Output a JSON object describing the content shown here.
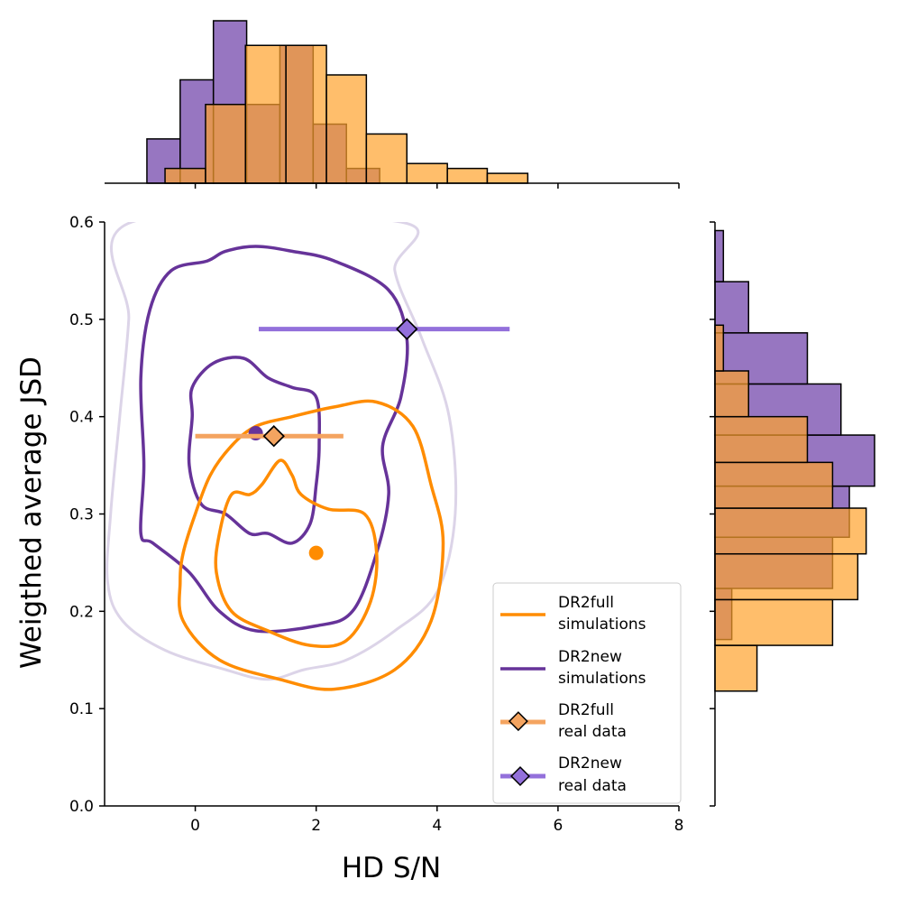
{
  "chart_data": {
    "type": "scatter",
    "xlabel": "HD S/N",
    "ylabel": "Weigthed average JSD",
    "xlim": [
      -1.5,
      8
    ],
    "ylim": [
      0,
      0.6
    ],
    "xticks": [
      0,
      2,
      4,
      6,
      8
    ],
    "yticks": [
      0.0,
      0.1,
      0.2,
      0.3,
      0.4,
      0.5,
      0.6
    ],
    "xtick_labels": [
      "0",
      "2",
      "4",
      "6",
      "8"
    ],
    "ytick_labels": [
      "0.0",
      "0.1",
      "0.2",
      "0.3",
      "0.4",
      "0.5",
      "0.6"
    ],
    "colors": {
      "full_line": "#ff8c00",
      "full_fill": "#ffa32c",
      "full_real": "#f4a460",
      "new_line": "#663399",
      "new_fill": "#7d54b2",
      "new_real": "#9370db",
      "outer_contour": "#dcd4e8"
    },
    "real_data": [
      {
        "name": "DR2full",
        "x": 1.3,
        "y": 0.38,
        "xerr": [
          0.0,
          2.45
        ]
      },
      {
        "name": "DR2new",
        "x": 3.5,
        "y": 0.49,
        "xerr": [
          1.05,
          5.2
        ]
      }
    ],
    "simulation_centers": [
      {
        "name": "DR2full",
        "x": 2.0,
        "y": 0.26
      },
      {
        "name": "DR2new",
        "x": 1.0,
        "y": 0.383
      }
    ],
    "contours": [
      {
        "series": "DR2new",
        "level": "outer-faint",
        "points": [
          [
            -1.05,
            0.6
          ],
          [
            -1.1,
            0.5
          ],
          [
            -1.25,
            0.4
          ],
          [
            -1.4,
            0.3
          ],
          [
            -1.45,
            0.23
          ],
          [
            -1.2,
            0.19
          ],
          [
            -0.5,
            0.16
          ],
          [
            0.5,
            0.14
          ],
          [
            1.2,
            0.13
          ],
          [
            1.8,
            0.14
          ],
          [
            2.5,
            0.15
          ],
          [
            3.3,
            0.18
          ],
          [
            4.0,
            0.22
          ],
          [
            4.3,
            0.3
          ],
          [
            4.2,
            0.4
          ],
          [
            3.75,
            0.48
          ],
          [
            3.3,
            0.55
          ],
          [
            3.4,
            0.6
          ]
        ]
      },
      {
        "series": "DR2new",
        "level": "mid",
        "points": [
          [
            -0.9,
            0.28
          ],
          [
            -0.85,
            0.35
          ],
          [
            -0.9,
            0.44
          ],
          [
            -0.75,
            0.51
          ],
          [
            -0.4,
            0.55
          ],
          [
            0.2,
            0.56
          ],
          [
            0.5,
            0.57
          ],
          [
            1.0,
            0.575
          ],
          [
            1.6,
            0.57
          ],
          [
            2.3,
            0.56
          ],
          [
            3.2,
            0.53
          ],
          [
            3.5,
            0.48
          ],
          [
            3.4,
            0.42
          ],
          [
            3.1,
            0.37
          ],
          [
            3.2,
            0.32
          ],
          [
            3.0,
            0.26
          ],
          [
            2.6,
            0.2
          ],
          [
            2.0,
            0.185
          ],
          [
            1.0,
            0.18
          ],
          [
            0.4,
            0.2
          ],
          [
            -0.1,
            0.24
          ],
          [
            -0.7,
            0.27
          ]
        ]
      },
      {
        "series": "DR2new",
        "level": "inner",
        "points": [
          [
            -0.05,
            0.43
          ],
          [
            0.3,
            0.455
          ],
          [
            0.8,
            0.46
          ],
          [
            1.2,
            0.44
          ],
          [
            1.6,
            0.43
          ],
          [
            2.0,
            0.42
          ],
          [
            2.05,
            0.37
          ],
          [
            2.0,
            0.33
          ],
          [
            1.9,
            0.29
          ],
          [
            1.6,
            0.27
          ],
          [
            1.2,
            0.28
          ],
          [
            0.9,
            0.28
          ],
          [
            0.5,
            0.3
          ],
          [
            0.1,
            0.31
          ],
          [
            -0.1,
            0.35
          ],
          [
            -0.05,
            0.4
          ]
        ]
      },
      {
        "series": "DR2full",
        "level": "outer",
        "points": [
          [
            -0.2,
            0.26
          ],
          [
            0.0,
            0.3
          ],
          [
            0.25,
            0.34
          ],
          [
            0.6,
            0.37
          ],
          [
            1.0,
            0.39
          ],
          [
            1.6,
            0.4
          ],
          [
            2.3,
            0.41
          ],
          [
            3.0,
            0.415
          ],
          [
            3.6,
            0.39
          ],
          [
            3.9,
            0.33
          ],
          [
            4.1,
            0.27
          ],
          [
            3.9,
            0.19
          ],
          [
            3.3,
            0.14
          ],
          [
            2.3,
            0.12
          ],
          [
            1.4,
            0.13
          ],
          [
            0.4,
            0.15
          ],
          [
            -0.2,
            0.19
          ],
          [
            -0.25,
            0.23
          ]
        ]
      },
      {
        "series": "DR2full",
        "level": "inner",
        "points": [
          [
            0.4,
            0.28
          ],
          [
            0.6,
            0.32
          ],
          [
            0.9,
            0.32
          ],
          [
            1.1,
            0.33
          ],
          [
            1.4,
            0.355
          ],
          [
            1.6,
            0.34
          ],
          [
            1.75,
            0.32
          ],
          [
            2.2,
            0.305
          ],
          [
            2.8,
            0.3
          ],
          [
            3.0,
            0.26
          ],
          [
            2.9,
            0.21
          ],
          [
            2.5,
            0.17
          ],
          [
            1.9,
            0.165
          ],
          [
            1.2,
            0.18
          ],
          [
            0.6,
            0.2
          ],
          [
            0.35,
            0.24
          ]
        ]
      }
    ],
    "top_hist": {
      "xlabel_axis": "HD S/N",
      "series": [
        {
          "name": "DR2new",
          "bin_edges": [
            -0.8,
            -0.25,
            0.3,
            0.85,
            1.4,
            1.95,
            2.5,
            3.05
          ],
          "counts": [
            9,
            21,
            33,
            16,
            28,
            12,
            3
          ]
        },
        {
          "name": "DR2full",
          "bin_edges": [
            -0.5,
            0.17,
            0.83,
            1.5,
            2.17,
            2.83,
            3.5,
            4.17,
            4.83,
            5.5
          ],
          "counts": [
            3,
            16,
            28,
            28,
            22,
            10,
            4,
            3,
            2
          ]
        }
      ]
    },
    "right_hist": {
      "series": [
        {
          "name": "DR2new",
          "bin_edges": [
            0.171,
            0.2235,
            0.2761,
            0.3286,
            0.3811,
            0.4336,
            0.4861,
            0.5387,
            0.5912
          ],
          "counts": [
            2,
            14,
            16,
            19,
            15,
            11,
            4,
            1
          ]
        },
        {
          "name": "DR2full",
          "bin_edges": [
            0.118,
            0.165,
            0.212,
            0.259,
            0.306,
            0.353,
            0.4,
            0.447,
            0.494
          ],
          "counts": [
            5,
            14,
            17,
            18,
            14,
            11,
            4,
            1
          ]
        }
      ]
    },
    "legend": {
      "location": "lower-right",
      "entries": [
        {
          "line1": "DR2full",
          "line2": "simulations"
        },
        {
          "line1": "DR2new",
          "line2": "simulations"
        },
        {
          "line1": "DR2full",
          "line2": "real data"
        },
        {
          "line1": "DR2new",
          "line2": "real data"
        }
      ]
    }
  }
}
